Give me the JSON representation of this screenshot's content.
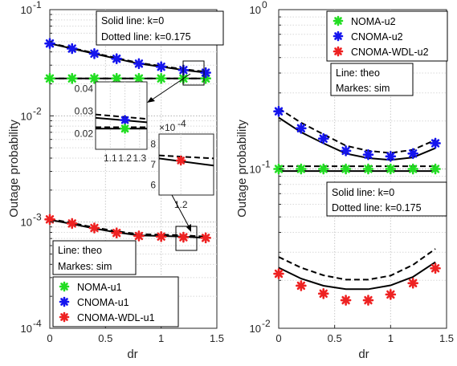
{
  "chart_data": [
    {
      "type": "line",
      "panel": "left",
      "xlabel": "dr",
      "ylabel": "Outage probability",
      "xlim": [
        0,
        1.5
      ],
      "ylim": [
        0.0001,
        0.1
      ],
      "yscale": "log",
      "grid": true,
      "x": [
        0,
        0.2,
        0.4,
        0.6,
        0.8,
        1.0,
        1.2,
        1.4
      ],
      "xticks": [
        "0",
        "0.5",
        "1",
        "1.5"
      ],
      "yticks": [
        "10",
        "10",
        "10",
        "10"
      ],
      "ytick_exponents": [
        "-1",
        "-2",
        "-3",
        "-4"
      ],
      "series": [
        {
          "name": "NOMA-u1",
          "color": "#22dd22",
          "theory_k0": [
            0.0225,
            0.0225,
            0.0225,
            0.0225,
            0.0225,
            0.0225,
            0.0225,
            0.0225
          ],
          "theory_k0175": [
            0.0225,
            0.0225,
            0.0225,
            0.0225,
            0.0225,
            0.0225,
            0.0225,
            0.0225
          ],
          "sim": [
            0.0225,
            0.0225,
            0.0225,
            0.0225,
            0.0225,
            0.0225,
            0.0225,
            0.0225
          ]
        },
        {
          "name": "CNOMA-u1",
          "color": "#1515ee",
          "theory_k0": [
            0.048,
            0.043,
            0.0385,
            0.0345,
            0.031,
            0.029,
            0.027,
            0.0255
          ],
          "theory_k0175": [
            0.0485,
            0.0435,
            0.039,
            0.035,
            0.0315,
            0.0295,
            0.0275,
            0.026
          ],
          "sim": [
            0.048,
            0.043,
            0.0385,
            0.0345,
            0.031,
            0.029,
            0.027,
            0.0255
          ]
        },
        {
          "name": "CNOMA-WDL-u1",
          "color": "#ee2222",
          "theory_k0": [
            0.00105,
            0.00096,
            0.00087,
            0.0008,
            0.00075,
            0.00074,
            0.00073,
            0.00071
          ],
          "theory_k0175": [
            0.00107,
            0.00098,
            0.00089,
            0.00082,
            0.00077,
            0.00076,
            0.00075,
            0.00073
          ],
          "sim": [
            0.00106,
            0.00097,
            0.00088,
            0.00079,
            0.00074,
            0.00073,
            0.00072,
            0.00071
          ]
        }
      ],
      "annotations": {
        "line_style": [
          "Solid line: k=0",
          "Dotted line: k=0.175"
        ],
        "theo_sim": [
          "Line: theo",
          "Markes: sim"
        ]
      },
      "legend": "bottom-right",
      "insets": [
        {
          "xticks": [
            "1.1",
            "1.2",
            "1.3"
          ],
          "yticks": [
            "0.04",
            "0.03",
            "0.02"
          ]
        },
        {
          "xticks": [
            "1.2"
          ],
          "yticks": [
            "8",
            "7",
            "6"
          ],
          "multiplier": "×10",
          "multiplier_exp": "-4"
        }
      ]
    },
    {
      "type": "line",
      "panel": "right",
      "xlabel": "dr",
      "ylabel": "Outage probability",
      "xlim": [
        0,
        1.5
      ],
      "ylim": [
        0.01,
        1
      ],
      "yscale": "log",
      "grid": true,
      "x": [
        0,
        0.2,
        0.4,
        0.6,
        0.8,
        1.0,
        1.2,
        1.4
      ],
      "xticks": [
        "0",
        "0.5",
        "1",
        "1.5"
      ],
      "yticks": [
        "10",
        "10",
        "10"
      ],
      "ytick_exponents": [
        "0",
        "-1",
        "-2"
      ],
      "series": [
        {
          "name": "NOMA-u2",
          "color": "#22dd22",
          "theory_k0": [
            0.097,
            0.097,
            0.097,
            0.097,
            0.097,
            0.097,
            0.097,
            0.097
          ],
          "theory_k0175": [
            0.104,
            0.104,
            0.104,
            0.104,
            0.104,
            0.104,
            0.104,
            0.104
          ],
          "sim": [
            0.1,
            0.1,
            0.1,
            0.1,
            0.1,
            0.1,
            0.1,
            0.1
          ]
        },
        {
          "name": "CNOMA-u2",
          "color": "#1515ee",
          "theory_k0": [
            0.21,
            0.17,
            0.145,
            0.125,
            0.117,
            0.114,
            0.118,
            0.135
          ],
          "theory_k0175": [
            0.24,
            0.195,
            0.165,
            0.14,
            0.13,
            0.126,
            0.132,
            0.152
          ],
          "sim": [
            0.23,
            0.18,
            0.155,
            0.13,
            0.123,
            0.12,
            0.125,
            0.145
          ]
        },
        {
          "name": "CNOMA-WDL-u2",
          "color": "#ee2222",
          "theory_k0": [
            0.024,
            0.0205,
            0.0185,
            0.0176,
            0.0176,
            0.0186,
            0.021,
            0.026
          ],
          "theory_k0175": [
            0.028,
            0.024,
            0.0215,
            0.0202,
            0.0202,
            0.0214,
            0.025,
            0.0315
          ],
          "sim": [
            0.022,
            0.0185,
            0.0165,
            0.015,
            0.015,
            0.0163,
            0.0192,
            0.0238
          ]
        }
      ],
      "annotations": {
        "line_style": [
          "Solid line: k=0",
          "Dotted line: k=0.175"
        ],
        "theo_sim": [
          "Line: theo",
          "Markes: sim"
        ]
      },
      "legend": "top"
    }
  ]
}
